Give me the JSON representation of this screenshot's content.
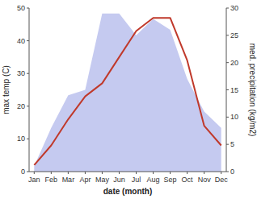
{
  "chart_data": {
    "type": "line",
    "categories": [
      "Jan",
      "Feb",
      "Mar",
      "Apr",
      "May",
      "Jun",
      "Jul",
      "Aug",
      "Sep",
      "Oct",
      "Nov",
      "Dec"
    ],
    "xlabel": "date (month)",
    "ylabel": "max temp (C)",
    "y2label": "med. precipitation (kg/m2)",
    "series": [
      {
        "type": "area",
        "axis": "y2",
        "color": "#c5caf0",
        "values": [
          1,
          8,
          14,
          15,
          29,
          29,
          25,
          28,
          26,
          17,
          11,
          8
        ]
      },
      {
        "type": "line",
        "color": "#c0392b",
        "values": [
          2,
          8,
          16,
          23,
          27,
          35,
          43,
          47,
          47,
          34,
          14,
          8
        ]
      }
    ],
    "ylim": [
      0,
      50
    ],
    "yticks": [
      0,
      10,
      20,
      30,
      40,
      50
    ],
    "y2lim": [
      0,
      30
    ],
    "y2ticks": [
      0,
      5,
      10,
      15,
      20,
      25,
      30
    ],
    "grid": false
  }
}
